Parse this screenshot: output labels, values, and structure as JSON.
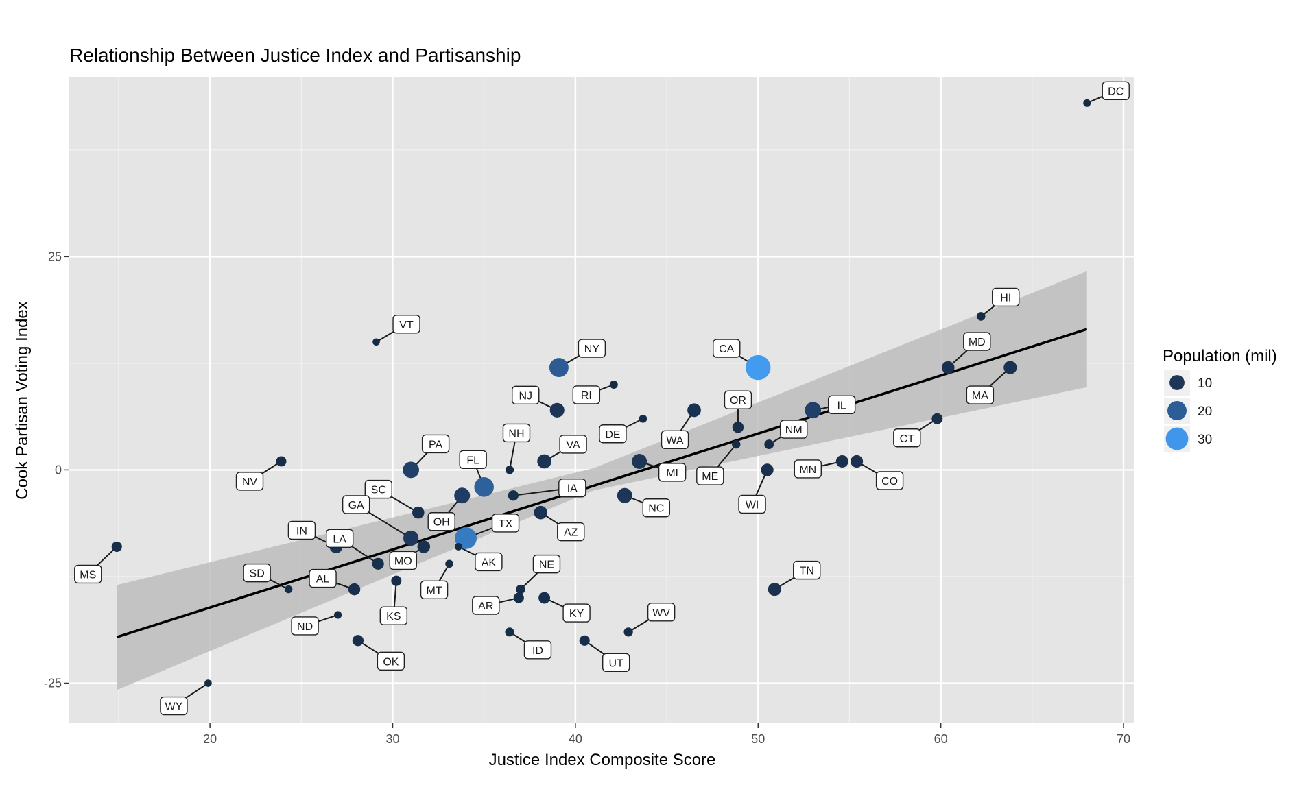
{
  "chart_data": {
    "type": "scatter",
    "title": "Relationship Between Justice Index and Partisanship",
    "xlabel": "Justice Index Composite Score",
    "ylabel": "Cook Partisan Voting Index",
    "xlim": [
      12.3,
      70.6
    ],
    "ylim": [
      -29.7,
      46.0
    ],
    "x_ticks": [
      20,
      30,
      40,
      50,
      60,
      70
    ],
    "y_ticks": [
      -25,
      0,
      25
    ],
    "x_tick_labels": [
      "20",
      "30",
      "40",
      "50",
      "60",
      "70"
    ],
    "y_tick_labels": [
      "-25",
      "0",
      "25"
    ],
    "grid": true,
    "legend": {
      "title": "Population (mil)",
      "placement": "right",
      "entries": [
        {
          "label": "10",
          "value": 10,
          "color": "#1d3557"
        },
        {
          "label": "20",
          "value": 20,
          "color": "#2d5d96"
        },
        {
          "label": "30",
          "value": 30,
          "color": "#4096ea"
        }
      ]
    },
    "trend_line": {
      "x": [
        14.9,
        68.0
      ],
      "y": [
        -19.6,
        16.5
      ],
      "ci_low_start": -25.8,
      "ci_high_start": -13.5,
      "ci_low_end": 9.7,
      "ci_high_end": 23.3,
      "ci_mid_x": 41.0,
      "ci_mid_low": -2.4,
      "ci_mid_high": 0.2
    },
    "points": [
      {
        "state": "DC",
        "x": 68.0,
        "y": 43.0,
        "pop": 0.7
      },
      {
        "state": "HI",
        "x": 62.2,
        "y": 18.0,
        "pop": 1.4
      },
      {
        "state": "MD",
        "x": 60.4,
        "y": 12.0,
        "pop": 6.0
      },
      {
        "state": "MA",
        "x": 63.8,
        "y": 12.0,
        "pop": 6.8
      },
      {
        "state": "CT",
        "x": 59.8,
        "y": 6.0,
        "pop": 3.6
      },
      {
        "state": "IL",
        "x": 53.0,
        "y": 7.0,
        "pop": 12.8
      },
      {
        "state": "NM",
        "x": 50.6,
        "y": 3.0,
        "pop": 2.1
      },
      {
        "state": "MN",
        "x": 54.6,
        "y": 1.0,
        "pop": 5.5
      },
      {
        "state": "CO",
        "x": 55.4,
        "y": 1.0,
        "pop": 5.6
      },
      {
        "state": "CA",
        "x": 50.0,
        "y": 12.0,
        "pop": 39.0
      },
      {
        "state": "OR",
        "x": 48.9,
        "y": 5.0,
        "pop": 4.1
      },
      {
        "state": "ME",
        "x": 48.8,
        "y": 3.0,
        "pop": 1.3
      },
      {
        "state": "WI",
        "x": 50.5,
        "y": 0.0,
        "pop": 5.8
      },
      {
        "state": "WA",
        "x": 46.5,
        "y": 7.0,
        "pop": 7.4
      },
      {
        "state": "MI",
        "x": 43.5,
        "y": 1.0,
        "pop": 10.0
      },
      {
        "state": "DE",
        "x": 43.7,
        "y": 6.0,
        "pop": 1.0
      },
      {
        "state": "NC",
        "x": 42.7,
        "y": -3.0,
        "pop": 10.2
      },
      {
        "state": "RI",
        "x": 42.1,
        "y": 10.0,
        "pop": 1.1
      },
      {
        "state": "NY",
        "x": 39.1,
        "y": 12.0,
        "pop": 19.8
      },
      {
        "state": "NJ",
        "x": 39.0,
        "y": 7.0,
        "pop": 9.0
      },
      {
        "state": "VA",
        "x": 38.3,
        "y": 1.0,
        "pop": 8.5
      },
      {
        "state": "NH",
        "x": 36.4,
        "y": 0.0,
        "pop": 1.3
      },
      {
        "state": "IA",
        "x": 36.6,
        "y": -3.0,
        "pop": 3.1
      },
      {
        "state": "AZ",
        "x": 38.1,
        "y": -5.0,
        "pop": 7.2
      },
      {
        "state": "FL",
        "x": 35.0,
        "y": -2.0,
        "pop": 21.0
      },
      {
        "state": "OH",
        "x": 33.8,
        "y": -3.0,
        "pop": 11.7
      },
      {
        "state": "TX",
        "x": 34.0,
        "y": -8.0,
        "pop": 28.0
      },
      {
        "state": "AK",
        "x": 33.6,
        "y": -9.0,
        "pop": 0.7
      },
      {
        "state": "PA",
        "x": 31.0,
        "y": 0.0,
        "pop": 12.8
      },
      {
        "state": "SC",
        "x": 31.4,
        "y": -5.0,
        "pop": 5.0
      },
      {
        "state": "GA",
        "x": 31.0,
        "y": -8.0,
        "pop": 10.5
      },
      {
        "state": "MO",
        "x": 31.7,
        "y": -9.0,
        "pop": 6.1
      },
      {
        "state": "LA",
        "x": 29.2,
        "y": -11.0,
        "pop": 4.7
      },
      {
        "state": "MT",
        "x": 33.1,
        "y": -11.0,
        "pop": 1.0
      },
      {
        "state": "KS",
        "x": 30.2,
        "y": -13.0,
        "pop": 2.9
      },
      {
        "state": "VT",
        "x": 29.1,
        "y": 15.0,
        "pop": 0.6
      },
      {
        "state": "NV",
        "x": 23.9,
        "y": 1.0,
        "pop": 2.9
      },
      {
        "state": "IN",
        "x": 26.9,
        "y": -9.0,
        "pop": 6.6
      },
      {
        "state": "AL",
        "x": 27.9,
        "y": -14.0,
        "pop": 4.9
      },
      {
        "state": "SD",
        "x": 24.3,
        "y": -14.0,
        "pop": 0.9
      },
      {
        "state": "ND",
        "x": 27.0,
        "y": -17.0,
        "pop": 0.8
      },
      {
        "state": "OK",
        "x": 28.1,
        "y": -20.0,
        "pop": 3.9
      },
      {
        "state": "MS",
        "x": 14.9,
        "y": -9.0,
        "pop": 3.0
      },
      {
        "state": "WY",
        "x": 19.9,
        "y": -25.0,
        "pop": 0.6
      },
      {
        "state": "NE",
        "x": 37.0,
        "y": -14.0,
        "pop": 1.9
      },
      {
        "state": "AR",
        "x": 36.9,
        "y": -15.0,
        "pop": 3.0
      },
      {
        "state": "KY",
        "x": 38.3,
        "y": -15.0,
        "pop": 4.4
      },
      {
        "state": "ID",
        "x": 36.4,
        "y": -19.0,
        "pop": 1.7
      },
      {
        "state": "UT",
        "x": 40.5,
        "y": -20.0,
        "pop": 3.0
      },
      {
        "state": "WV",
        "x": 42.9,
        "y": -19.0,
        "pop": 1.8
      },
      {
        "state": "TN",
        "x": 50.9,
        "y": -14.0,
        "pop": 6.6
      }
    ]
  }
}
